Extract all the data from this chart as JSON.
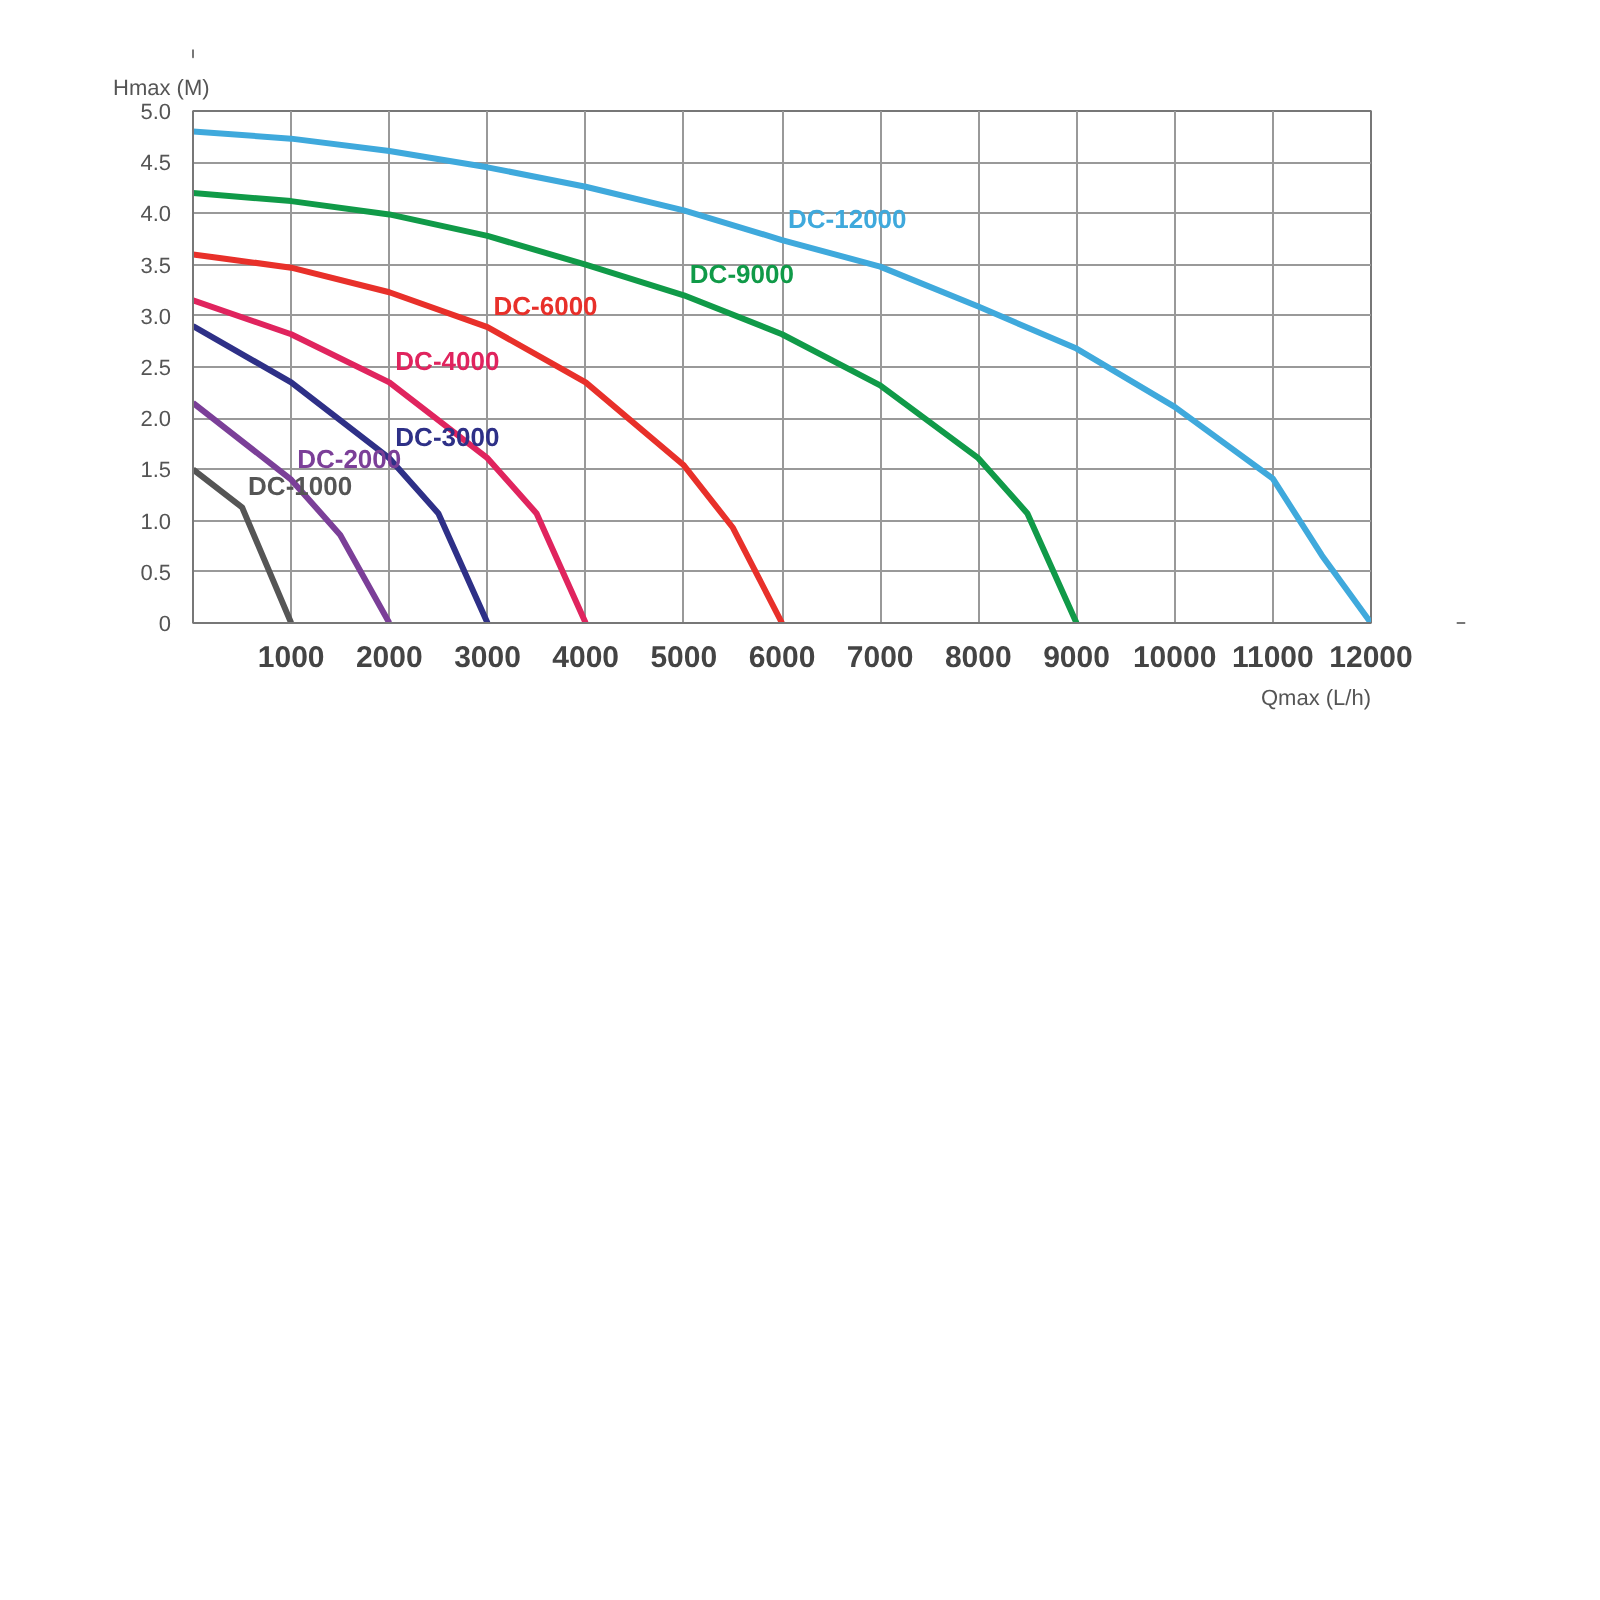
{
  "chart_data": {
    "type": "line",
    "xlabel": "Qmax (L/h)",
    "ylabel": "Hmax (M)",
    "xlim": [
      0,
      12000
    ],
    "ylim": [
      0,
      5
    ],
    "xticks": [
      1000,
      2000,
      3000,
      4000,
      5000,
      6000,
      7000,
      8000,
      9000,
      10000,
      11000,
      12000
    ],
    "yticks": [
      {
        "value": 0,
        "label": "0"
      },
      0.5,
      {
        "value": 1,
        "label": "1.0"
      },
      1.5,
      {
        "value": 2,
        "label": "2.0"
      },
      2.5,
      {
        "value": 3,
        "label": "3.0"
      },
      3.5,
      {
        "value": 4,
        "label": "4.0"
      },
      4.5,
      {
        "value": 5,
        "label": "5.0"
      }
    ],
    "grid": true,
    "marker": "none",
    "line_style": "solid",
    "series": [
      {
        "name": "DC-12000",
        "color": "#3fa9dc",
        "x": [
          0,
          1000,
          2000,
          3000,
          4000,
          5000,
          6000,
          7000,
          8000,
          9000,
          10000,
          11000,
          11500,
          12000
        ],
        "values": [
          4.8,
          4.73,
          4.61,
          4.45,
          4.26,
          4.03,
          3.74,
          3.48,
          3.09,
          2.68,
          2.11,
          1.41,
          0.66,
          0
        ]
      },
      {
        "name": "DC-9000",
        "color": "#109a48",
        "x": [
          0,
          1000,
          2000,
          3000,
          4000,
          5000,
          6000,
          7000,
          8000,
          8500,
          9000
        ],
        "values": [
          4.2,
          4.12,
          3.99,
          3.78,
          3.5,
          3.2,
          2.82,
          2.32,
          1.61,
          1.07,
          0
        ]
      },
      {
        "name": "DC-6000",
        "color": "#e8302a",
        "x": [
          0,
          1000,
          2000,
          3000,
          4000,
          5000,
          5500,
          6000
        ],
        "values": [
          3.6,
          3.47,
          3.23,
          2.89,
          2.35,
          1.54,
          0.93,
          0
        ]
      },
      {
        "name": "DC-4000",
        "color": "#e0245e",
        "x": [
          0,
          1000,
          2000,
          3000,
          3500,
          4000
        ],
        "values": [
          3.15,
          2.82,
          2.35,
          1.61,
          1.07,
          0
        ]
      },
      {
        "name": "DC-3000",
        "color": "#2e3087",
        "x": [
          0,
          1000,
          2000,
          2500,
          3000
        ],
        "values": [
          2.9,
          2.35,
          1.61,
          1.07,
          0
        ]
      },
      {
        "name": "DC-2000",
        "color": "#7b3f98",
        "x": [
          0,
          1000,
          1500,
          2000
        ],
        "values": [
          2.15,
          1.4,
          0.86,
          0
        ]
      },
      {
        "name": "DC-1000",
        "color": "#555555",
        "x": [
          0,
          500,
          1000
        ],
        "values": [
          1.5,
          1.13,
          0
        ]
      }
    ]
  }
}
